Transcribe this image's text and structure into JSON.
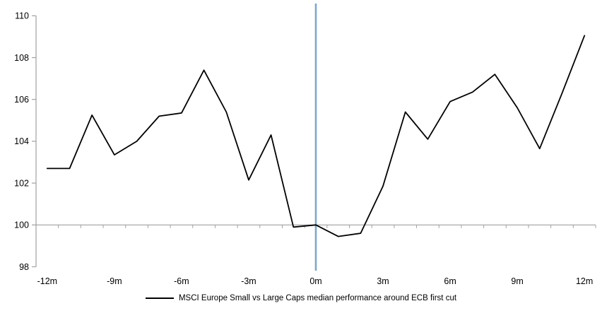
{
  "chart_data": {
    "type": "line",
    "title": "",
    "xlabel": "",
    "ylabel": "",
    "months": [
      -12,
      -11,
      -10,
      -9,
      -8,
      -7,
      -6,
      -5,
      -4,
      -3,
      -2,
      -1,
      0,
      1,
      2,
      3,
      4,
      5,
      6,
      7,
      8,
      9,
      10,
      11,
      12
    ],
    "series": [
      {
        "name": "MSCI Europe Small vs Large Caps median performance around ECB first cut",
        "values": [
          102.7,
          102.7,
          105.25,
          103.35,
          104.0,
          105.2,
          105.35,
          107.4,
          105.4,
          102.15,
          104.3,
          99.9,
          100.0,
          99.45,
          99.6,
          101.85,
          105.4,
          104.1,
          105.9,
          106.35,
          107.2,
          105.6,
          103.65,
          106.3,
          109.05
        ]
      }
    ],
    "x_tick_labels": [
      {
        "month": -12,
        "label": "-12m"
      },
      {
        "month": -9,
        "label": "-9m"
      },
      {
        "month": -6,
        "label": "-6m"
      },
      {
        "month": -3,
        "label": "-3m"
      },
      {
        "month": 0,
        "label": "0m"
      },
      {
        "month": 3,
        "label": "3m"
      },
      {
        "month": 6,
        "label": "6m"
      },
      {
        "month": 9,
        "label": "9m"
      },
      {
        "month": 12,
        "label": "12m"
      }
    ],
    "y_ticks": [
      98,
      100,
      102,
      104,
      106,
      108,
      110
    ],
    "ylim": [
      98,
      110
    ],
    "x_axis_cross_value": 100,
    "event_line_month": 0,
    "grid": "off",
    "legend_position": "bottom-center",
    "colors": {
      "series_line": "#000000",
      "axis": "#a0a0a0",
      "event_line": "#7da6cd",
      "text": "#000000"
    }
  },
  "legend": {
    "label": "MSCI Europe Small vs Large Caps median performance around ECB first cut"
  }
}
